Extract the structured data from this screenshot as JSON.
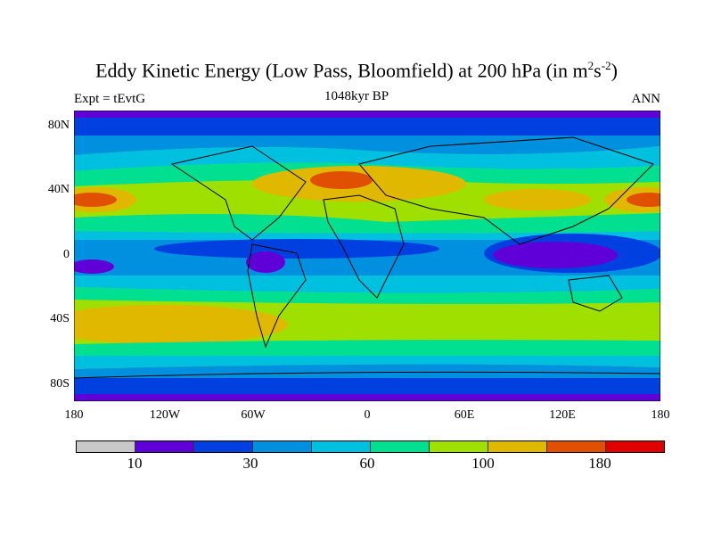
{
  "title": {
    "main": "Eddy Kinetic Energy (Low Pass, Bloomfield) at 200 hPa (in m",
    "sup1": "2",
    "mid": "s",
    "sup2": "-2",
    "end": ")"
  },
  "left_label": "Expt = tEvtG",
  "center_label": "1048kyr BP",
  "right_label": "ANN",
  "y_ticks": [
    "80N",
    "40N",
    "0",
    "40S",
    "80S"
  ],
  "x_ticks": [
    "180",
    "120W",
    "60W",
    "0",
    "60E",
    "120E",
    "180"
  ],
  "colorbar": {
    "colors": [
      "#c8c8c8",
      "#6000d8",
      "#0040e0",
      "#0090e0",
      "#00c0e0",
      "#00e090",
      "#a0e000",
      "#e0b800",
      "#e05000",
      "#e00000"
    ],
    "labels": [
      "10",
      "30",
      "60",
      "100",
      "180"
    ]
  }
}
